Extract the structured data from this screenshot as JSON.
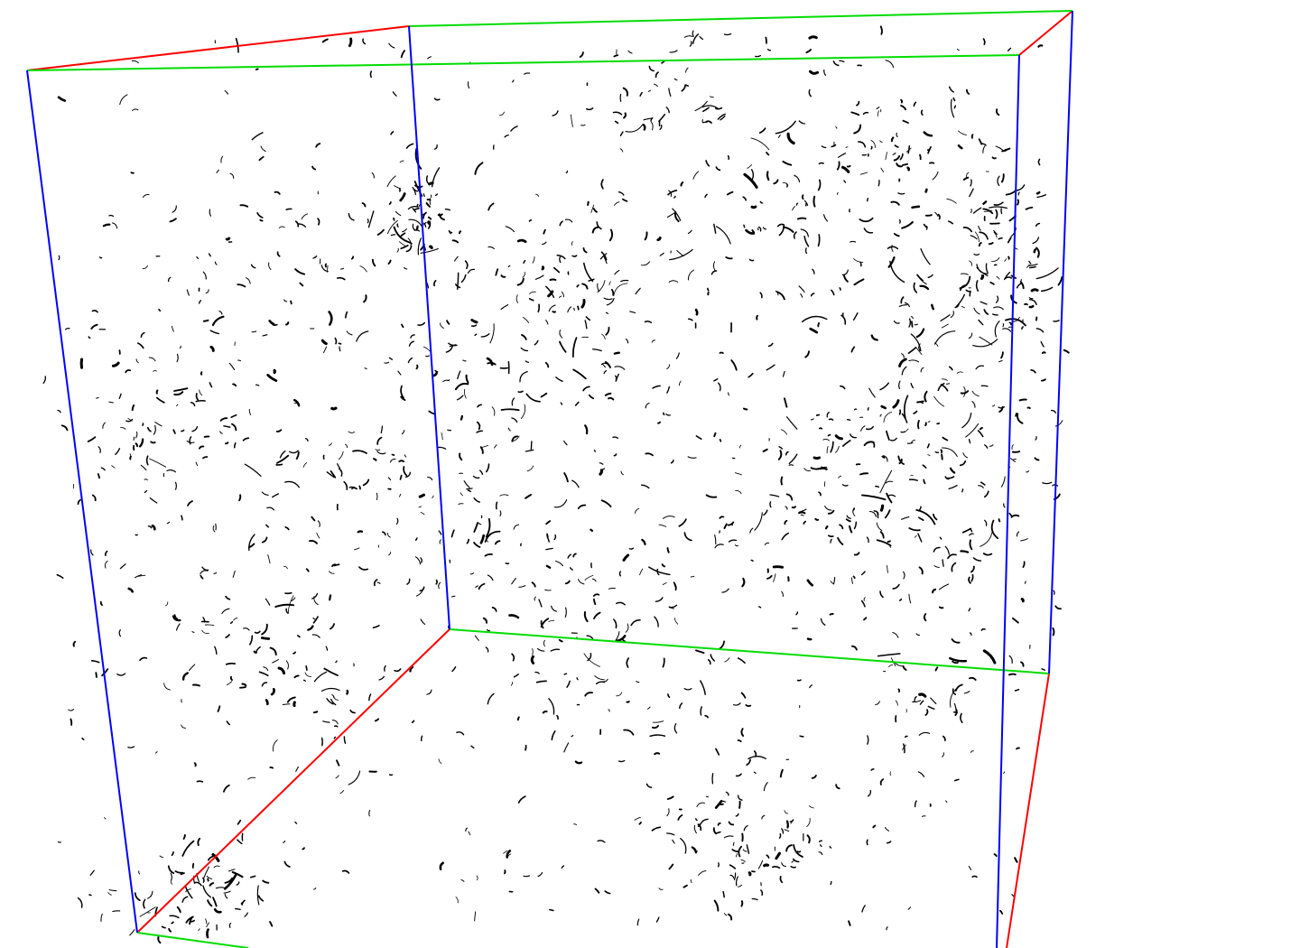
{
  "scene": {
    "type": "3d-volume-render",
    "background": "#ffffff",
    "box": {
      "axis_colors": {
        "x": "#ff0000",
        "y": "#00dd00",
        "z": "#0000ff"
      }
    },
    "particles": {
      "color": "#000000",
      "style": "filament-fragments",
      "density": "sparse"
    }
  }
}
